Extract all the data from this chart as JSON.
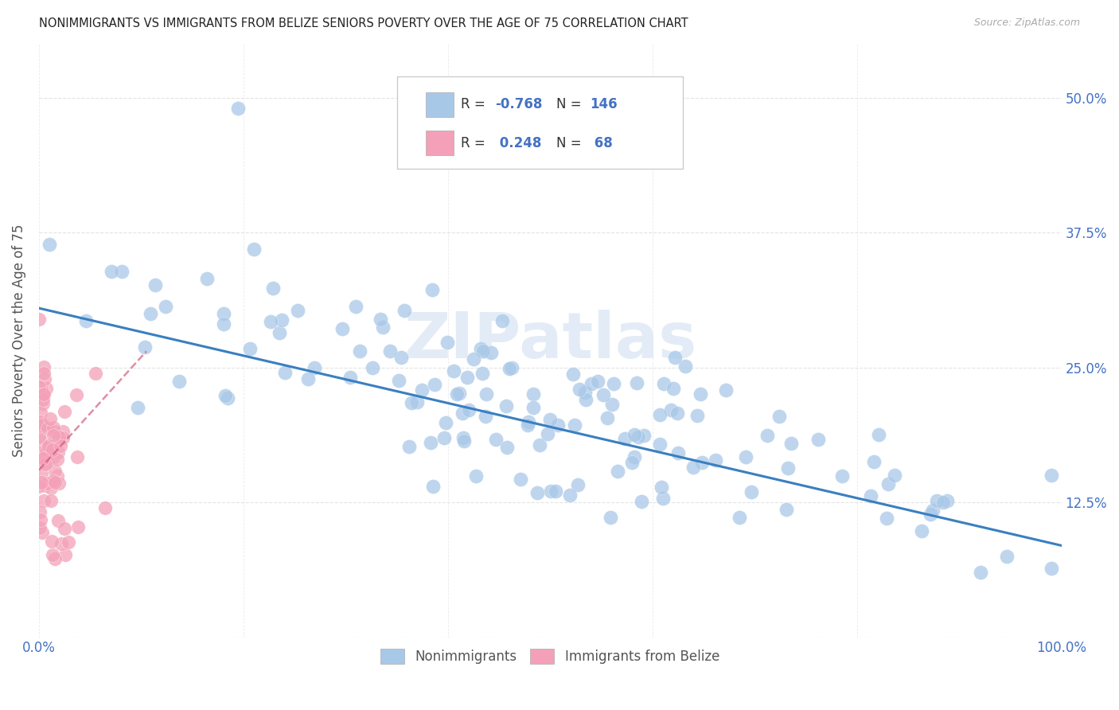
{
  "title": "NONIMMIGRANTS VS IMMIGRANTS FROM BELIZE SENIORS POVERTY OVER THE AGE OF 75 CORRELATION CHART",
  "source": "Source: ZipAtlas.com",
  "ylabel": "Seniors Poverty Over the Age of 75",
  "xlim": [
    0,
    1.0
  ],
  "ylim": [
    0,
    0.55
  ],
  "yticks": [
    0.0,
    0.125,
    0.25,
    0.375,
    0.5
  ],
  "xticks": [
    0.0,
    0.1,
    0.2,
    0.3,
    0.4,
    0.5,
    0.6,
    0.7,
    0.8,
    0.9,
    1.0
  ],
  "blue_color": "#a8c8e8",
  "pink_color": "#f4a0b8",
  "blue_line_color": "#3a7fc1",
  "pink_line_color": "#d05070",
  "blue_R": -0.768,
  "blue_N": 146,
  "pink_R": 0.248,
  "pink_N": 68,
  "watermark": "ZIPatlas",
  "background_color": "#ffffff",
  "grid_color": "#dddddd",
  "tick_label_color": "#4472c4",
  "legend_color": "#4472c4"
}
